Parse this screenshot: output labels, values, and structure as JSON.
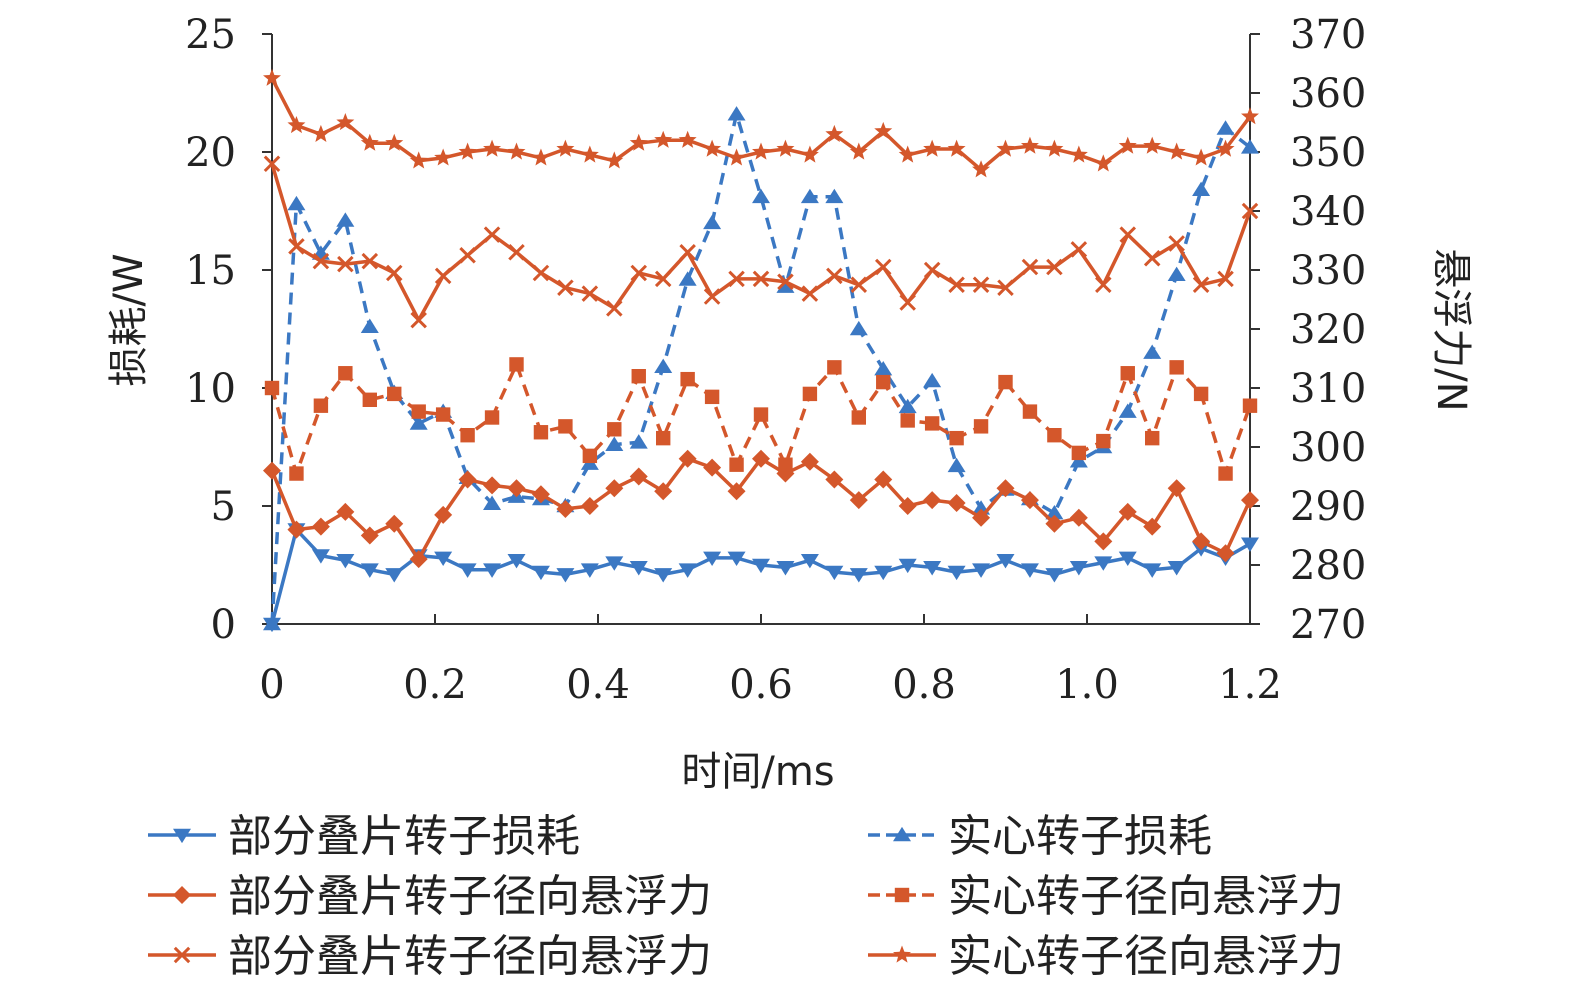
{
  "chart_data": {
    "type": "line",
    "xlabel": "时间/ms",
    "ylabel_left": "损耗/W",
    "ylabel_right": "悬浮力/N",
    "xlim": [
      0,
      1.2
    ],
    "ylim_left": [
      0,
      25
    ],
    "ylim_right": [
      270,
      370
    ],
    "x_ticks": [
      "0",
      "0.2",
      "0.4",
      "0.6",
      "0.8",
      "1.0",
      "1.2"
    ],
    "y_left_ticks": [
      "0",
      "5",
      "10",
      "15",
      "20",
      "25"
    ],
    "y_right_ticks": [
      "270",
      "280",
      "290",
      "300",
      "310",
      "320",
      "330",
      "340",
      "350",
      "360",
      "370"
    ],
    "grid": false,
    "legend_position": "bottom",
    "x": [
      0,
      0.03,
      0.06,
      0.09,
      0.12,
      0.15,
      0.18,
      0.21,
      0.24,
      0.27,
      0.3,
      0.33,
      0.36,
      0.39,
      0.42,
      0.45,
      0.48,
      0.51,
      0.54,
      0.57,
      0.6,
      0.63,
      0.66,
      0.69,
      0.72,
      0.75,
      0.78,
      0.81,
      0.84,
      0.87,
      0.9,
      0.93,
      0.96,
      0.99,
      1.02,
      1.05,
      1.08,
      1.11,
      1.14,
      1.17,
      1.2
    ],
    "series": [
      {
        "name": "部分叠片转子损耗",
        "axis": "left",
        "color": "#3b78c3",
        "marker": "triangle-down",
        "dash": "solid",
        "values": [
          0,
          4.0,
          2.9,
          2.7,
          2.3,
          2.1,
          2.9,
          2.8,
          2.3,
          2.3,
          2.7,
          2.2,
          2.1,
          2.3,
          2.6,
          2.4,
          2.1,
          2.3,
          2.8,
          2.8,
          2.5,
          2.4,
          2.7,
          2.2,
          2.1,
          2.2,
          2.5,
          2.4,
          2.2,
          2.3,
          2.7,
          2.3,
          2.1,
          2.4,
          2.6,
          2.8,
          2.3,
          2.4,
          3.2,
          2.8,
          3.4
        ]
      },
      {
        "name": "实心转子损耗",
        "axis": "left",
        "color": "#3b78c3",
        "marker": "triangle-up",
        "dash": "dashed",
        "values": [
          0,
          17.8,
          15.7,
          17.1,
          12.6,
          9.8,
          8.5,
          9.0,
          6.2,
          5.1,
          5.4,
          5.3,
          5.0,
          6.8,
          7.6,
          7.7,
          10.9,
          14.6,
          17.0,
          21.6,
          18.1,
          14.3,
          18.1,
          18.1,
          12.5,
          10.8,
          9.2,
          10.3,
          6.7,
          4.9,
          5.7,
          5.3,
          4.7,
          6.9,
          7.5,
          9.0,
          11.5,
          14.8,
          18.4,
          21.0,
          20.2
        ]
      },
      {
        "name": "部分叠片转子径向悬浮力",
        "axis": "right",
        "color": "#d4572b",
        "marker": "diamond",
        "dash": "solid",
        "values": [
          296,
          286,
          286.5,
          289,
          285,
          287,
          281,
          288.5,
          294.5,
          293.5,
          293,
          292,
          289.5,
          290,
          293,
          295,
          292.5,
          298,
          296.5,
          292.5,
          298,
          295.5,
          297.5,
          294.5,
          291,
          294.5,
          290,
          291,
          290.5,
          288,
          293,
          291,
          287,
          288,
          284,
          289,
          286.5,
          293,
          284,
          282,
          291
        ]
      },
      {
        "name": "实心转子径向悬浮力",
        "axis": "right",
        "color": "#d4572b",
        "marker": "square",
        "dash": "dashed",
        "values": [
          310,
          295.5,
          307,
          312.5,
          308,
          309,
          306,
          305.5,
          302,
          305,
          314,
          302.5,
          303.5,
          298.5,
          303,
          312,
          301.5,
          311.5,
          308.5,
          297,
          305.5,
          297,
          309,
          313.5,
          305,
          311,
          304.5,
          304,
          301.5,
          303.5,
          311,
          306,
          302,
          299,
          301,
          312.5,
          301.5,
          313.5,
          309,
          295.5,
          307
        ]
      },
      {
        "name": "部分叠片转子径向悬浮力",
        "axis": "right",
        "color": "#d4572b",
        "marker": "x",
        "dash": "solid",
        "values": [
          348,
          334,
          331.5,
          331,
          331.5,
          329.5,
          321.5,
          329,
          332.5,
          336,
          333,
          329.5,
          327,
          326,
          323.5,
          329.5,
          328.5,
          333,
          325.5,
          328.5,
          328.5,
          328,
          326,
          329,
          327.5,
          330.5,
          324.5,
          330,
          327.5,
          327.5,
          327,
          330.5,
          330.5,
          333.5,
          327.5,
          336,
          332,
          334.5,
          327.5,
          328.5,
          340
        ]
      },
      {
        "name": "实心转子径向悬浮力",
        "axis": "right",
        "color": "#d4572b",
        "marker": "star",
        "dash": "solid",
        "values": [
          362.5,
          354.5,
          353,
          355,
          351.5,
          351.5,
          348.5,
          349,
          350,
          350.5,
          350,
          349,
          350.5,
          349.5,
          348.5,
          351.5,
          352,
          352,
          350.5,
          349,
          350,
          350.5,
          349.5,
          353,
          350,
          353.5,
          349.5,
          350.5,
          350.5,
          347,
          350.5,
          351,
          350.5,
          349.5,
          348,
          351,
          351,
          350,
          349,
          350.5,
          356
        ]
      }
    ]
  }
}
